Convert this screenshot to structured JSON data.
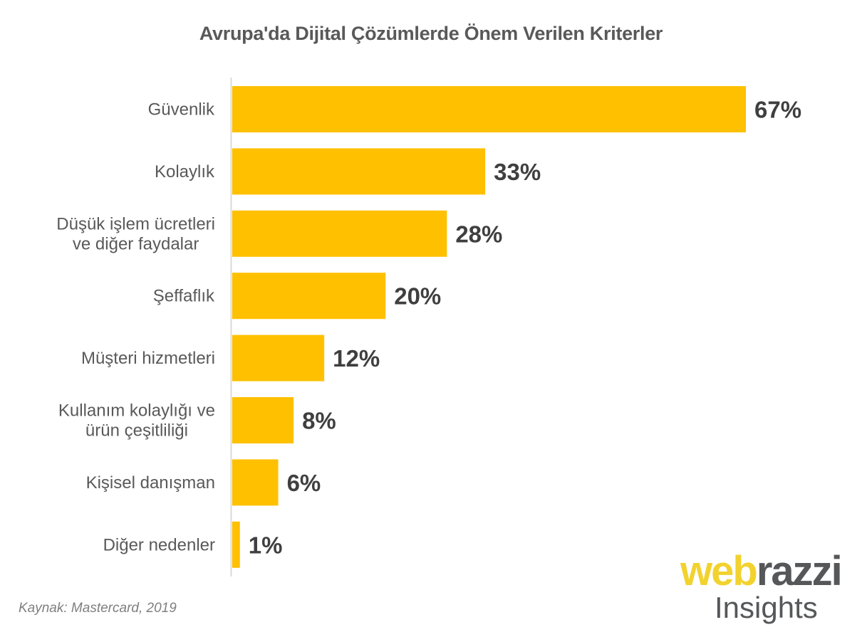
{
  "chart_data": {
    "type": "bar",
    "orientation": "horizontal",
    "title": "Avrupa'da Dijital Çözümlerde Önem Verilen Kriterler",
    "xlabel": "",
    "ylabel": "",
    "xlim": [
      0,
      67
    ],
    "grid": false,
    "categories": [
      [
        "Güvenlik"
      ],
      [
        "Kolaylık "
      ],
      [
        "Düşük işlem ücretleri",
        "ve diğer faydalar"
      ],
      [
        "Şeffaflık"
      ],
      [
        "Müşteri hizmetleri"
      ],
      [
        "Kullanım kolaylığı ve",
        "ürün çeşitliliği"
      ],
      [
        "Kişisel danışman"
      ],
      [
        "Diğer nedenler"
      ]
    ],
    "values": [
      67,
      33,
      28,
      20,
      12,
      8,
      6,
      1
    ],
    "value_labels": [
      "67%",
      "33%",
      "28%",
      "20%",
      "12%",
      "8%",
      "6%",
      "1%"
    ],
    "bar_color": "#FFC000",
    "axis_color": "#d9d9d9"
  },
  "source": "Kaynak: Mastercard, 2019",
  "logo": {
    "part1": "web",
    "part2": "razzi",
    "part3": "Insights",
    "color_yellow": "#f2d22e",
    "color_gray": "#555759"
  }
}
